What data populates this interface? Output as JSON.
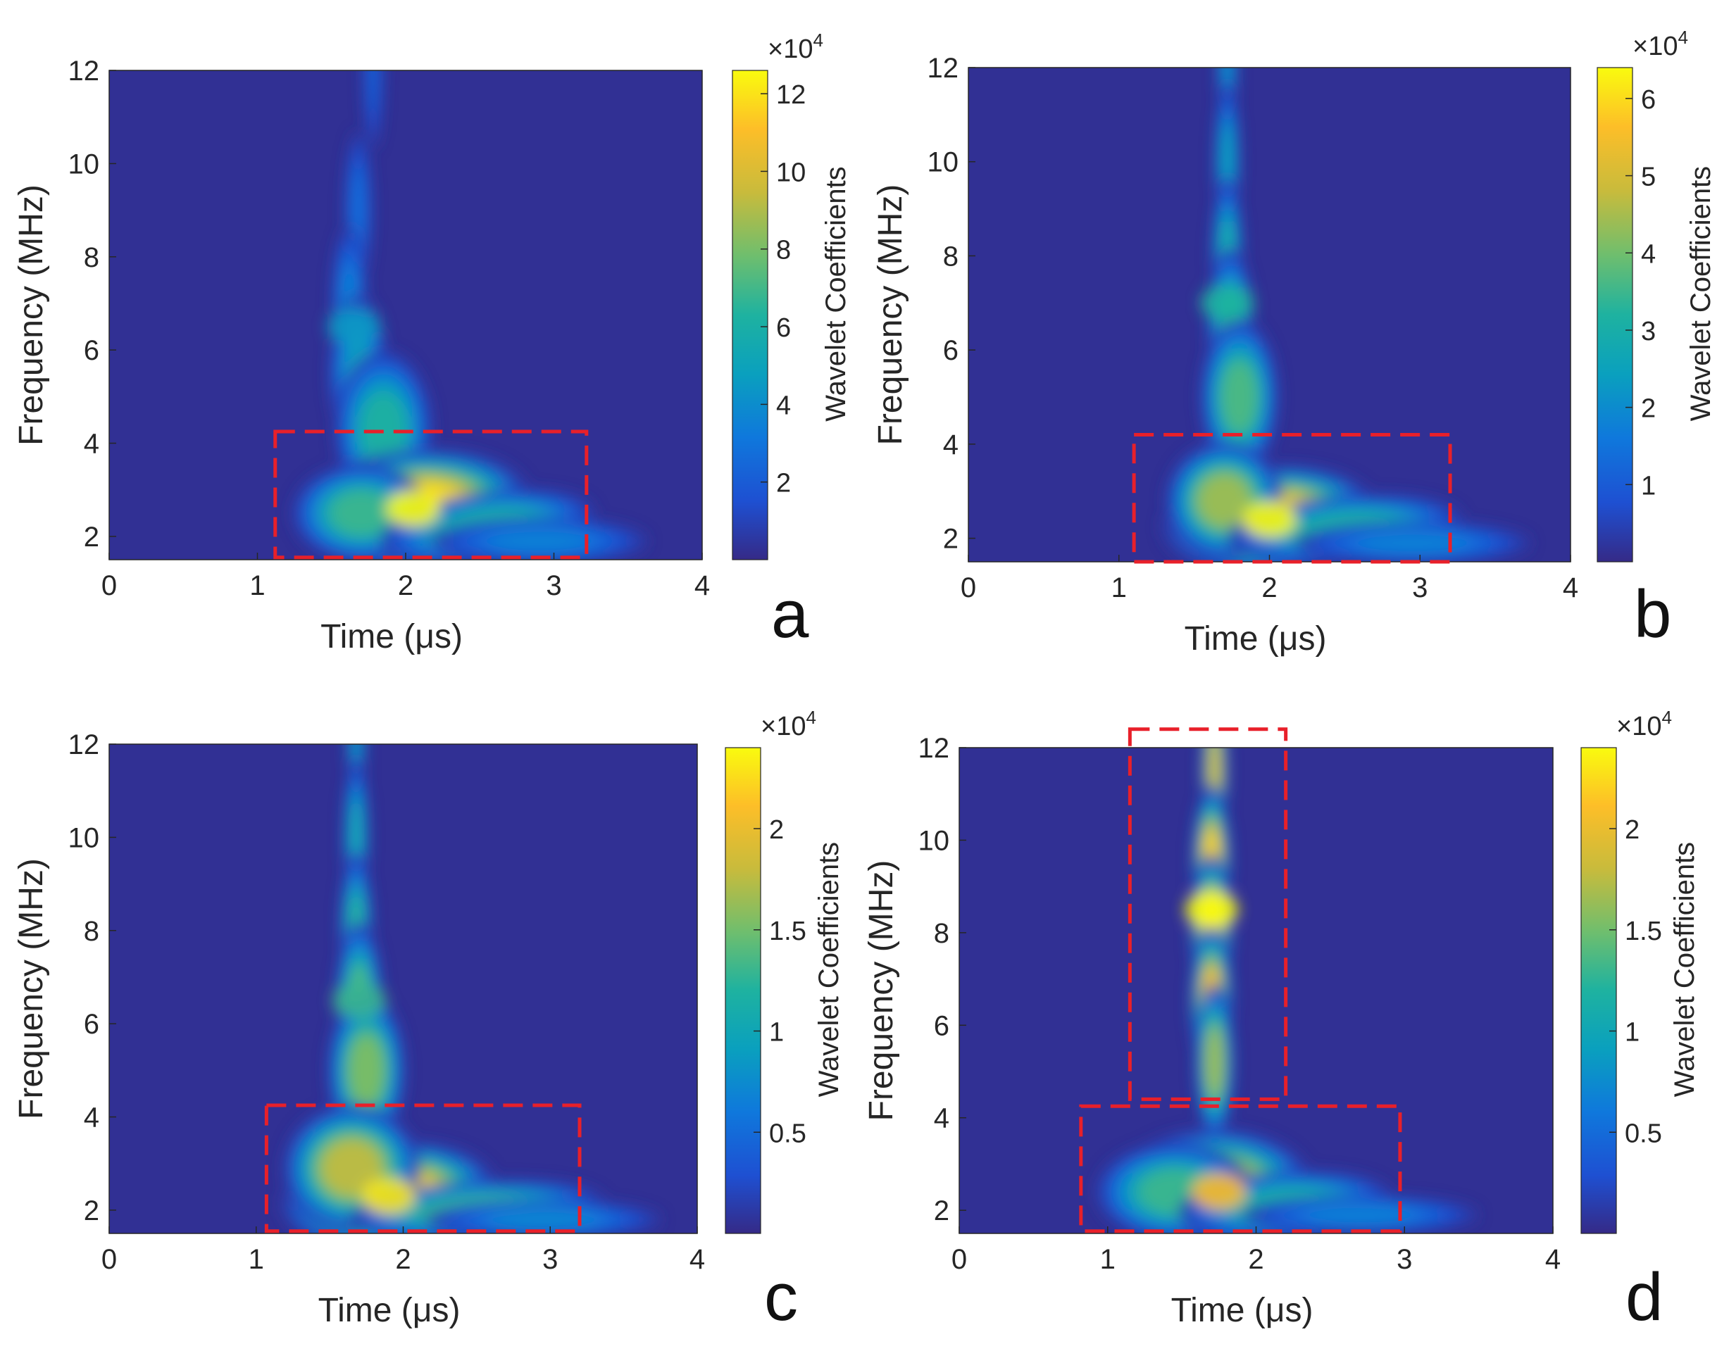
{
  "chart_data": [
    {
      "panel_label": "a",
      "type": "heatmap",
      "title": "",
      "xlabel": "Time (μs)",
      "ylabel": "Frequency (MHz)",
      "xlim": [
        0,
        4
      ],
      "ylim": [
        1.5,
        12
      ],
      "xticks": [
        "0",
        "1",
        "2",
        "3",
        "4"
      ],
      "yticks": [
        "2",
        "4",
        "6",
        "8",
        "10",
        "12"
      ],
      "colorbar": {
        "label": "Wavelet Coefficients",
        "multiplier": "×10",
        "exponent": "4",
        "max": 12.6,
        "ticks": [
          "2",
          "4",
          "6",
          "8",
          "10",
          "12"
        ]
      },
      "hotspots": [
        {
          "t": 2.05,
          "f": 2.6,
          "value": 12.6
        },
        {
          "t": 1.65,
          "f": 6.5,
          "value": 4.5
        }
      ],
      "highlight_boxes": [
        {
          "t": [
            1.12,
            3.22
          ],
          "f": [
            1.55,
            4.25
          ]
        }
      ]
    },
    {
      "panel_label": "b",
      "type": "heatmap",
      "title": "",
      "xlabel": "Time (μs)",
      "ylabel": "Frequency (MHz)",
      "xlim": [
        0,
        4
      ],
      "ylim": [
        1.5,
        12
      ],
      "xticks": [
        "0",
        "1",
        "2",
        "3",
        "4"
      ],
      "yticks": [
        "2",
        "4",
        "6",
        "8",
        "10",
        "12"
      ],
      "colorbar": {
        "label": "Wavelet Coefficients",
        "multiplier": "×10",
        "exponent": "4",
        "max": 6.4,
        "ticks": [
          "1",
          "2",
          "3",
          "4",
          "5",
          "6"
        ]
      },
      "hotspots": [
        {
          "t": 2.0,
          "f": 2.4,
          "value": 6.4
        },
        {
          "t": 1.72,
          "f": 7.0,
          "value": 3.2
        }
      ],
      "highlight_boxes": [
        {
          "t": [
            1.1,
            3.2
          ],
          "f": [
            1.5,
            4.2
          ]
        }
      ]
    },
    {
      "panel_label": "c",
      "type": "heatmap",
      "title": "",
      "xlabel": "Time (μs)",
      "ylabel": "Frequency (MHz)",
      "xlim": [
        0,
        4
      ],
      "ylim": [
        1.5,
        12
      ],
      "xticks": [
        "0",
        "1",
        "2",
        "3",
        "4"
      ],
      "yticks": [
        "2",
        "4",
        "6",
        "8",
        "10",
        "12"
      ],
      "colorbar": {
        "label": "Wavelet Coefficients",
        "multiplier": "×10",
        "exponent": "4",
        "max": 2.4,
        "ticks": [
          "0.5",
          "1",
          "1.5",
          "2"
        ]
      },
      "hotspots": [
        {
          "t": 1.9,
          "f": 2.3,
          "value": 2.3
        },
        {
          "t": 1.7,
          "f": 6.5,
          "value": 1.3
        }
      ],
      "highlight_boxes": [
        {
          "t": [
            1.07,
            3.2
          ],
          "f": [
            1.55,
            4.25
          ]
        }
      ]
    },
    {
      "panel_label": "d",
      "type": "heatmap",
      "title": "",
      "xlabel": "Time (μs)",
      "ylabel": "Frequency (MHz)",
      "xlim": [
        0,
        4
      ],
      "ylim": [
        1.5,
        12
      ],
      "xticks": [
        "0",
        "1",
        "2",
        "3",
        "4"
      ],
      "yticks": [
        "2",
        "4",
        "6",
        "8",
        "10",
        "12"
      ],
      "colorbar": {
        "label": "Wavelet Coefficients",
        "multiplier": "×10",
        "exponent": "4",
        "max": 2.4,
        "ticks": [
          "0.5",
          "1",
          "1.5",
          "2"
        ]
      },
      "hotspots": [
        {
          "t": 1.7,
          "f": 8.5,
          "value": 2.4
        },
        {
          "t": 1.75,
          "f": 2.4,
          "value": 2.1
        }
      ],
      "highlight_boxes": [
        {
          "t": [
            1.15,
            2.2
          ],
          "f": [
            4.4,
            12.4
          ]
        },
        {
          "t": [
            0.82,
            2.97
          ],
          "f": [
            1.55,
            4.25
          ]
        }
      ]
    }
  ]
}
